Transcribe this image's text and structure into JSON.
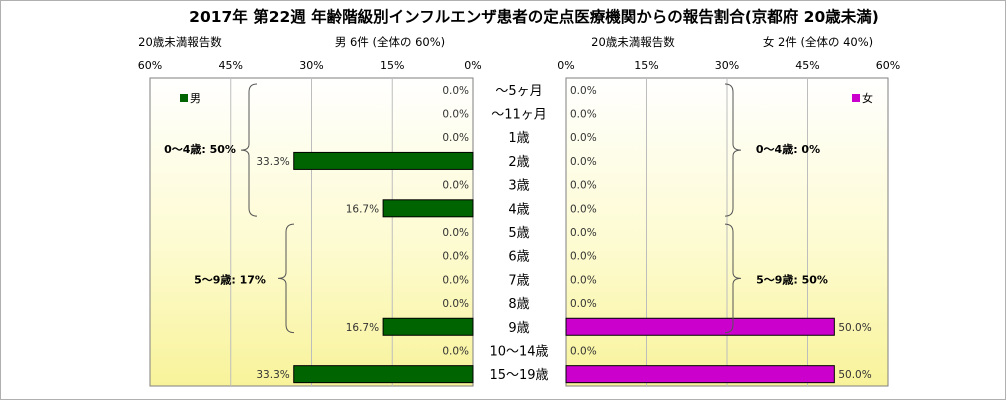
{
  "title": "2017年 第22週 年齢階級別インフルエンザ患者の定点医療機関からの報告割合(京都府 20歳未満)",
  "left_panel": {
    "subtitle": "20歳未満報告数",
    "header": "男 6件 (全体の 60%)",
    "legend": "男",
    "color": "#006400",
    "group_labels": [
      "0～4歳: 50%",
      "5～9歳: 17%"
    ]
  },
  "right_panel": {
    "subtitle": "20歳未満報告数",
    "header": "女 2件 (全体の 40%)",
    "legend": "女",
    "color": "#cc00cc",
    "group_labels": [
      "0～4歳: 0%",
      "5～9歳: 50%"
    ]
  },
  "chart_data": {
    "type": "bar",
    "orientation": "horizontal-butterfly",
    "categories": [
      "～5ヶ月",
      "～11ヶ月",
      "1歳",
      "2歳",
      "3歳",
      "4歳",
      "5歳",
      "6歳",
      "7歳",
      "8歳",
      "9歳",
      "10～14歳",
      "15～19歳"
    ],
    "series": [
      {
        "name": "男",
        "values": [
          0.0,
          0.0,
          0.0,
          33.3,
          0.0,
          16.7,
          0.0,
          0.0,
          0.0,
          0.0,
          16.7,
          0.0,
          33.3
        ],
        "labels": [
          "0.0%",
          "0.0%",
          "0.0%",
          "33.3%",
          "0.0%",
          "16.7%",
          "0.0%",
          "0.0%",
          "0.0%",
          "0.0%",
          "16.7%",
          "0.0%",
          "33.3%"
        ]
      },
      {
        "name": "女",
        "values": [
          0.0,
          0.0,
          0.0,
          0.0,
          0.0,
          0.0,
          0.0,
          0.0,
          0.0,
          0.0,
          50.0,
          0.0,
          50.0
        ],
        "labels": [
          "0.0%",
          "0.0%",
          "0.0%",
          "0.0%",
          "0.0%",
          "0.0%",
          "0.0%",
          "0.0%",
          "0.0%",
          "0.0%",
          "50.0%",
          "0.0%",
          "50.0%"
        ]
      }
    ],
    "xlim": [
      0,
      60
    ],
    "left_ticks": [
      "60%",
      "45%",
      "30%",
      "15%",
      "0%"
    ],
    "right_ticks": [
      "0%",
      "15%",
      "30%",
      "45%",
      "60%"
    ],
    "grid": true
  }
}
